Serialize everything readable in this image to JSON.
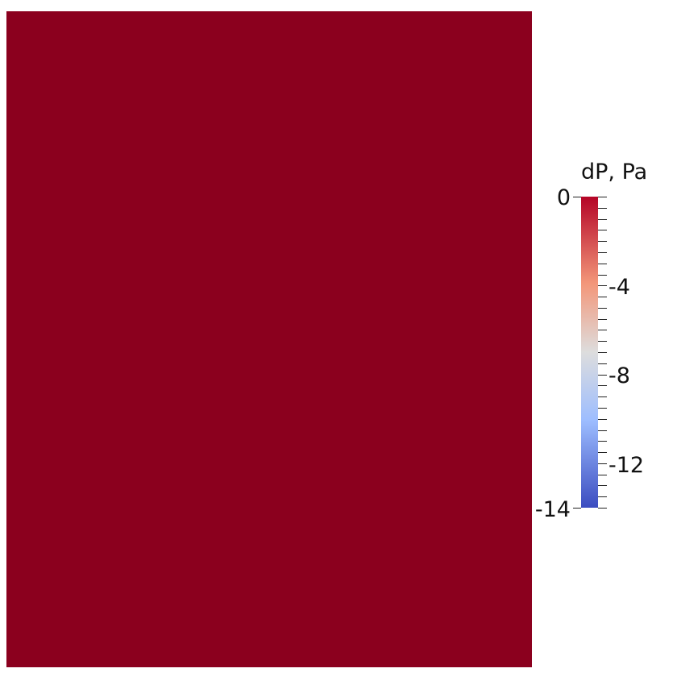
{
  "field": {
    "color": "#8b001e"
  },
  "colorbar": {
    "title": "dP, Pa",
    "min": -14,
    "max": 0,
    "min_label": "-14",
    "max_label": "0",
    "tick_labels": [
      "-4",
      "-8",
      "-12"
    ],
    "colormap": "cool-to-warm",
    "colors": {
      "top": "#b40426",
      "upper": "#f3977a",
      "mid": "#dddddd",
      "lower": "#9dbdff",
      "bottom": "#3b4cc0"
    }
  }
}
